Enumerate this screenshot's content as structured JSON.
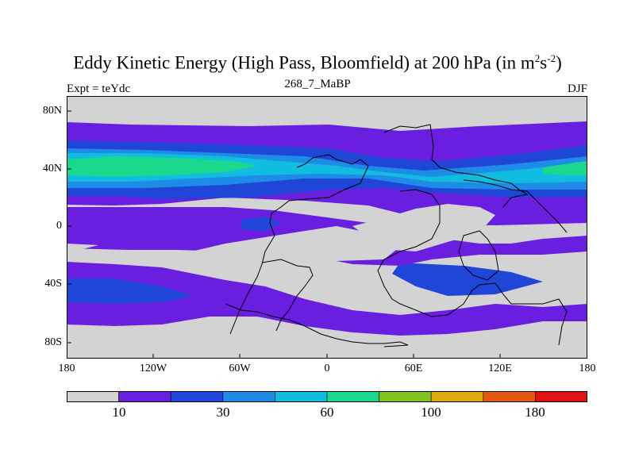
{
  "title": {
    "main": "Eddy Kinetic Energy (High Pass, Bloomfield) at 200 hPa (in m",
    "sup1": "2",
    "mid": "s",
    "sup2": "-2",
    "end": ")"
  },
  "subtitle": "268_7_MaBP",
  "left_note": "Expt = teYdc",
  "right_note": "DJF",
  "map": {
    "y_ticks": [
      "80N",
      "40N",
      "0",
      "40S",
      "80S"
    ],
    "x_ticks": [
      "180",
      "120W",
      "60W",
      "0",
      "60E",
      "120E",
      "180"
    ]
  },
  "colorbar": {
    "colors": [
      "#d3d3d3",
      "#6a1ee0",
      "#1f46d6",
      "#1e8ce6",
      "#10bce0",
      "#1ad98c",
      "#7fc31f",
      "#dfaa14",
      "#e25a10",
      "#e11212"
    ],
    "labels": [
      "10",
      "30",
      "60",
      "100",
      "180"
    ]
  },
  "palette": {
    "gray": "#d3d3d3",
    "violet": "#6a1ee0",
    "blue": "#1f46d6",
    "medblue": "#1e8ce6",
    "cyan": "#10bce0",
    "green": "#1ad98c"
  }
}
